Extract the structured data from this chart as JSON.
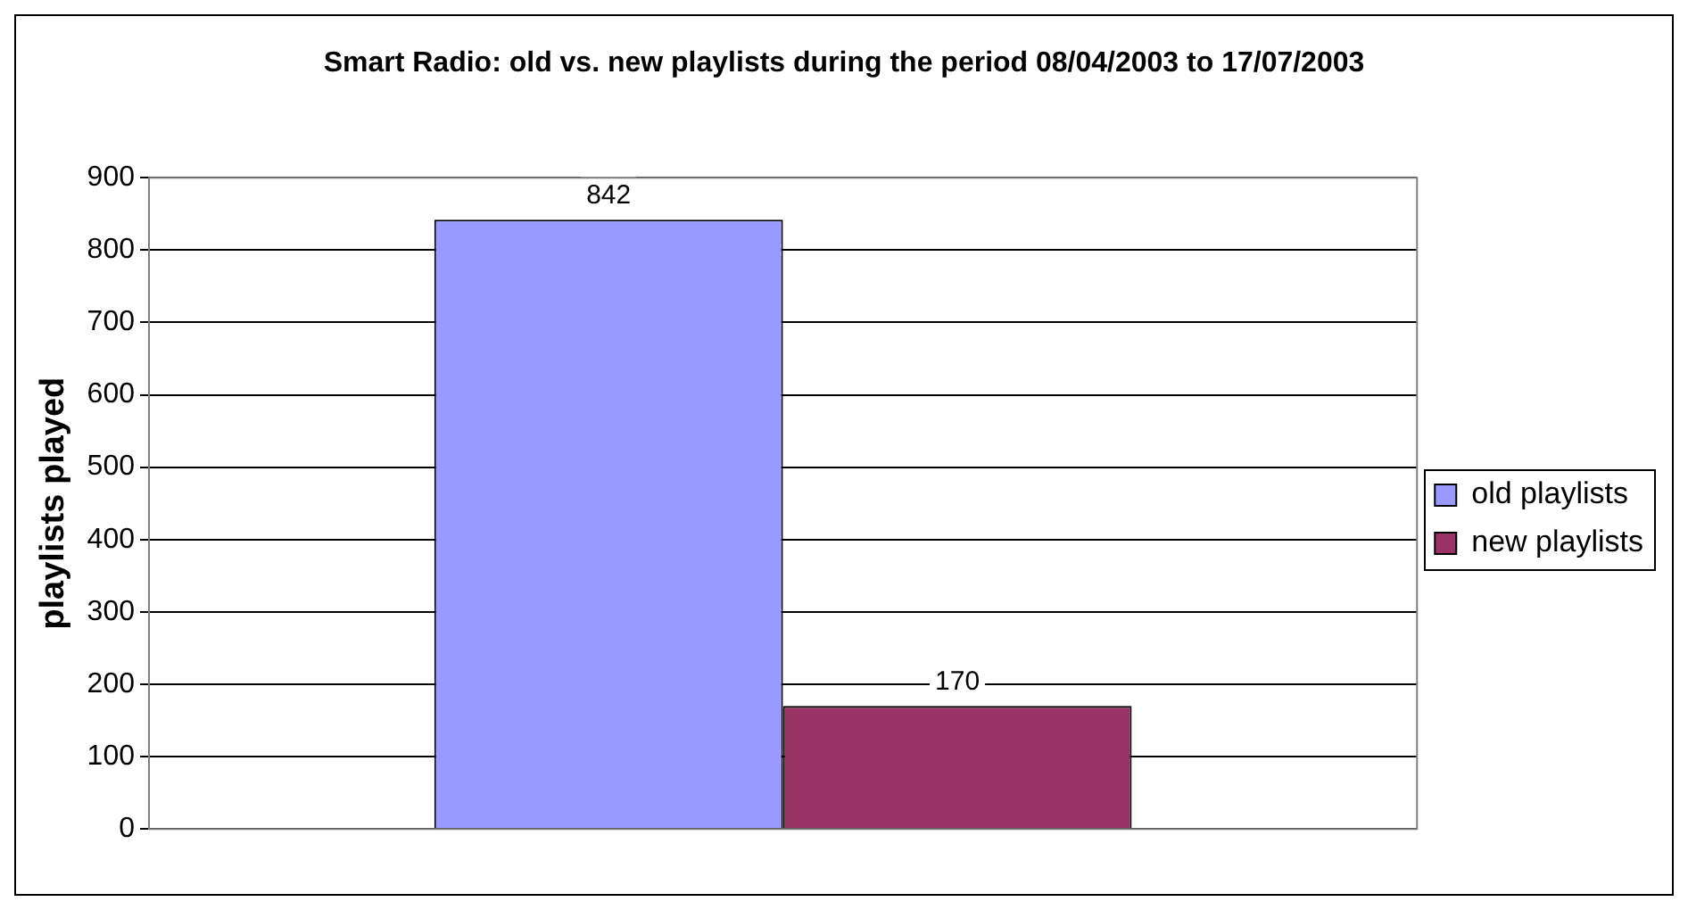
{
  "chart_data": {
    "type": "bar",
    "title": "Smart Radio: old vs. new playlists during the period 08/04/2003 to 17/07/2003",
    "ylabel": "playlists played",
    "categories": [
      null
    ],
    "series": [
      {
        "name": "old playlists",
        "color": "#9999ff",
        "values": [
          842
        ]
      },
      {
        "name": "new playlists",
        "color": "#993366",
        "values": [
          170
        ]
      }
    ],
    "ylim": [
      0,
      900
    ],
    "yticks": [
      0,
      100,
      200,
      300,
      400,
      500,
      600,
      700,
      800,
      900
    ],
    "grid": "y",
    "legend": "right",
    "data_labels": true
  }
}
